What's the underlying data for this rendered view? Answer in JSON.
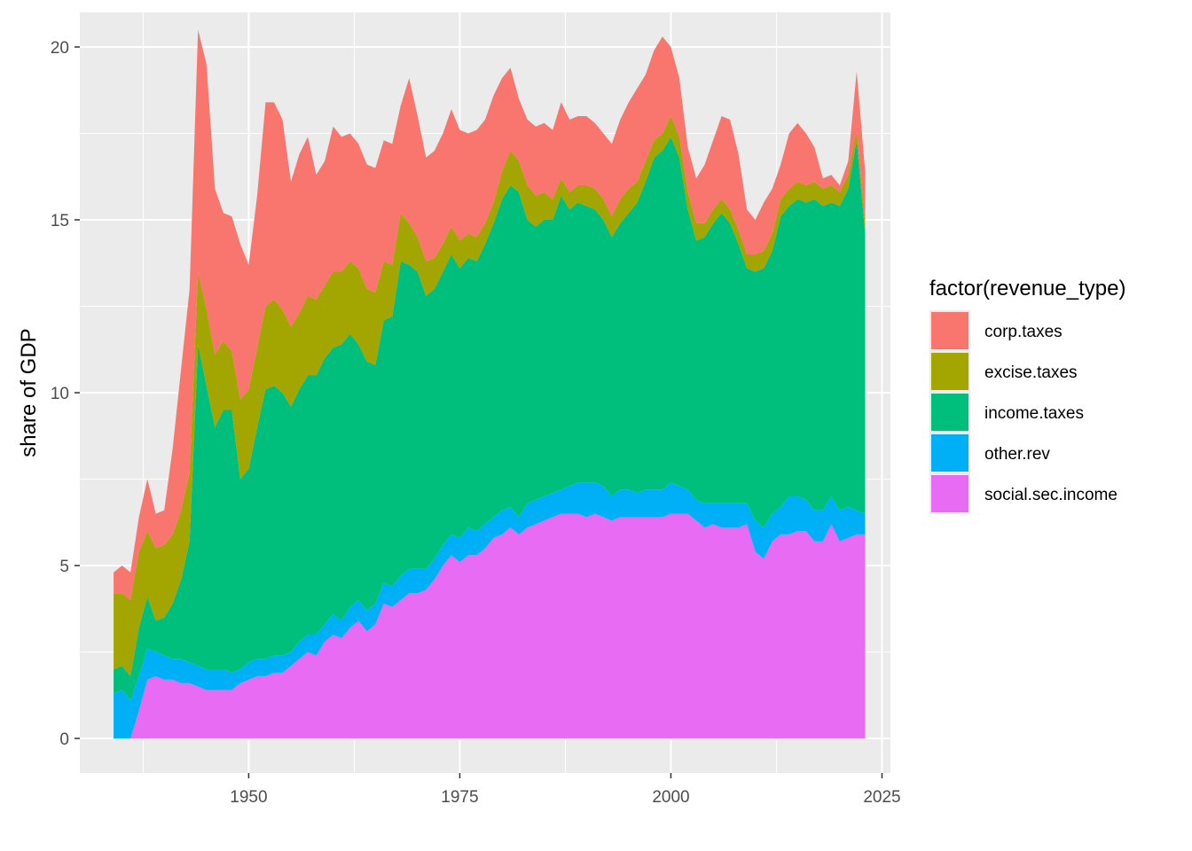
{
  "chart_data": {
    "type": "area",
    "stacked": true,
    "xlabel": "",
    "ylabel": "share of GDP",
    "xlim": [
      1930,
      2026
    ],
    "ylim": [
      -1,
      21
    ],
    "x_ticks": [
      1950,
      1975,
      2000,
      2025
    ],
    "x_tick_labels": [
      "1950",
      "1975",
      "2000",
      "2025"
    ],
    "y_ticks": [
      0,
      5,
      10,
      15,
      20
    ],
    "y_tick_labels": [
      "0",
      "5",
      "10",
      "15",
      "20"
    ],
    "grid": true,
    "panel_background": "#ebebeb",
    "legend": {
      "title": "factor(revenue_type)",
      "position": "right",
      "entries": [
        "corp.taxes",
        "excise.taxes",
        "income.taxes",
        "other.rev",
        "social.sec.income"
      ]
    },
    "x": [
      1934,
      1935,
      1936,
      1937,
      1938,
      1939,
      1940,
      1941,
      1942,
      1943,
      1944,
      1945,
      1946,
      1947,
      1948,
      1949,
      1950,
      1951,
      1952,
      1953,
      1954,
      1955,
      1956,
      1957,
      1958,
      1959,
      1960,
      1961,
      1962,
      1963,
      1964,
      1965,
      1966,
      1967,
      1968,
      1969,
      1970,
      1971,
      1972,
      1973,
      1974,
      1975,
      1976,
      1977,
      1978,
      1979,
      1980,
      1981,
      1982,
      1983,
      1984,
      1985,
      1986,
      1987,
      1988,
      1989,
      1990,
      1991,
      1992,
      1993,
      1994,
      1995,
      1996,
      1997,
      1998,
      1999,
      2000,
      2001,
      2002,
      2003,
      2004,
      2005,
      2006,
      2007,
      2008,
      2009,
      2010,
      2011,
      2012,
      2013,
      2014,
      2015,
      2016,
      2017,
      2018,
      2019,
      2020,
      2021,
      2022,
      2023
    ],
    "series": [
      {
        "name": "social.sec.income",
        "color": "#e76bf3",
        "values": [
          0,
          0,
          0,
          0.8,
          1.7,
          1.8,
          1.7,
          1.7,
          1.6,
          1.6,
          1.5,
          1.4,
          1.4,
          1.4,
          1.4,
          1.6,
          1.7,
          1.8,
          1.8,
          1.9,
          1.9,
          2.1,
          2.3,
          2.5,
          2.4,
          2.8,
          3.0,
          2.9,
          3.2,
          3.4,
          3.1,
          3.3,
          3.9,
          3.8,
          4.0,
          4.2,
          4.2,
          4.3,
          4.6,
          5.0,
          5.3,
          5.1,
          5.3,
          5.3,
          5.5,
          5.8,
          5.9,
          6.1,
          5.9,
          6.1,
          6.2,
          6.3,
          6.4,
          6.5,
          6.5,
          6.5,
          6.4,
          6.5,
          6.4,
          6.3,
          6.4,
          6.4,
          6.4,
          6.4,
          6.4,
          6.4,
          6.5,
          6.5,
          6.5,
          6.3,
          6.1,
          6.2,
          6.1,
          6.1,
          6.1,
          6.2,
          5.4,
          5.2,
          5.7,
          5.9,
          5.9,
          6.0,
          6.0,
          5.7,
          5.7,
          6.2,
          5.7,
          5.8,
          5.9,
          5.9
        ]
      },
      {
        "name": "other.rev",
        "color": "#00b0f6",
        "values": [
          1.3,
          1.4,
          1.1,
          1.0,
          0.9,
          0.7,
          0.7,
          0.6,
          0.7,
          0.6,
          0.6,
          0.6,
          0.6,
          0.6,
          0.5,
          0.4,
          0.5,
          0.5,
          0.5,
          0.5,
          0.5,
          0.4,
          0.5,
          0.5,
          0.6,
          0.5,
          0.6,
          0.5,
          0.6,
          0.6,
          0.6,
          0.6,
          0.6,
          0.6,
          0.7,
          0.7,
          0.7,
          0.6,
          0.6,
          0.6,
          0.6,
          0.7,
          0.8,
          0.7,
          0.7,
          0.6,
          0.7,
          0.6,
          0.5,
          0.7,
          0.7,
          0.7,
          0.7,
          0.7,
          0.8,
          0.9,
          1.0,
          0.9,
          0.9,
          0.7,
          0.8,
          0.8,
          0.7,
          0.8,
          0.8,
          0.8,
          0.9,
          0.8,
          0.7,
          0.6,
          0.7,
          0.6,
          0.7,
          0.7,
          0.7,
          0.6,
          0.9,
          0.9,
          0.8,
          0.8,
          1.1,
          1.0,
          0.9,
          0.9,
          0.9,
          0.8,
          0.9,
          0.9,
          0.7,
          0.6
        ]
      },
      {
        "name": "income.taxes",
        "color": "#00bf7d",
        "values": [
          0.7,
          0.7,
          0.7,
          1.4,
          1.5,
          0.9,
          1.1,
          1.6,
          2.3,
          3.5,
          9.3,
          8.2,
          7.0,
          7.5,
          7.6,
          5.5,
          5.6,
          6.7,
          7.8,
          7.8,
          7.6,
          7.1,
          7.3,
          7.5,
          7.5,
          7.7,
          7.7,
          8.0,
          7.9,
          7.4,
          7.2,
          6.9,
          7.6,
          7.8,
          9.1,
          8.8,
          8.6,
          7.9,
          7.8,
          7.9,
          8.1,
          7.8,
          7.8,
          7.8,
          8.1,
          8.5,
          9.0,
          9.3,
          9.4,
          8.2,
          7.9,
          8.0,
          7.9,
          8.5,
          8.0,
          8.1,
          8.0,
          7.9,
          7.7,
          7.5,
          7.7,
          8.0,
          8.4,
          8.9,
          9.6,
          9.8,
          10.0,
          9.5,
          8.1,
          7.5,
          7.7,
          8.1,
          8.4,
          8.1,
          7.5,
          6.8,
          7.2,
          7.5,
          7.6,
          8.4,
          8.4,
          8.6,
          8.6,
          9.0,
          8.8,
          8.5,
          8.8,
          9.2,
          10.7,
          8.1
        ]
      },
      {
        "name": "excise.taxes",
        "color": "#a3a500",
        "values": [
          2.2,
          2.1,
          2.2,
          2.2,
          1.9,
          2.1,
          2.1,
          2.0,
          2.0,
          2.0,
          2.1,
          2.2,
          2.1,
          2.0,
          1.7,
          2.3,
          2.3,
          2.3,
          2.4,
          2.5,
          2.4,
          2.3,
          2.2,
          2.3,
          2.2,
          2.1,
          2.2,
          2.1,
          2.1,
          2.2,
          2.1,
          2.1,
          1.7,
          1.5,
          1.4,
          1.2,
          1.0,
          1.0,
          0.9,
          0.8,
          0.8,
          0.8,
          0.7,
          0.7,
          0.6,
          0.6,
          0.8,
          1.0,
          0.9,
          1.0,
          0.9,
          0.8,
          0.6,
          0.5,
          0.5,
          0.5,
          0.6,
          0.6,
          0.6,
          0.6,
          0.7,
          0.7,
          0.6,
          0.6,
          0.5,
          0.5,
          0.6,
          0.6,
          0.5,
          0.5,
          0.4,
          0.4,
          0.4,
          0.4,
          0.4,
          0.4,
          0.5,
          0.5,
          0.5,
          0.5,
          0.5,
          0.5,
          0.5,
          0.5,
          0.5,
          0.5,
          0.4,
          0.4,
          0.3,
          0.3
        ]
      },
      {
        "name": "corp.taxes",
        "color": "#f8766d",
        "values": [
          0.6,
          0.8,
          0.8,
          1.0,
          1.5,
          1.0,
          1.0,
          2.5,
          4.1,
          5.3,
          7.0,
          7.1,
          4.8,
          3.7,
          3.9,
          4.5,
          3.6,
          4.4,
          5.9,
          5.7,
          5.5,
          4.2,
          4.6,
          4.6,
          3.6,
          3.6,
          4.2,
          3.9,
          3.7,
          3.6,
          3.6,
          3.6,
          3.5,
          3.5,
          3.1,
          4.2,
          3.5,
          3.0,
          3.1,
          3.2,
          3.4,
          3.2,
          2.9,
          3.1,
          3.0,
          3.1,
          2.7,
          2.4,
          1.8,
          1.9,
          2.0,
          2.0,
          2.0,
          2.2,
          2.1,
          2.0,
          2.0,
          1.9,
          1.9,
          2.1,
          2.3,
          2.5,
          2.7,
          2.5,
          2.6,
          2.8,
          2.0,
          1.7,
          1.3,
          1.3,
          1.7,
          2.0,
          2.4,
          2.6,
          2.2,
          1.3,
          1.0,
          1.4,
          1.3,
          1.0,
          1.6,
          1.7,
          1.5,
          1.0,
          0.3,
          0.3,
          0.2,
          0.4,
          1.7,
          1.5
        ]
      }
    ]
  }
}
